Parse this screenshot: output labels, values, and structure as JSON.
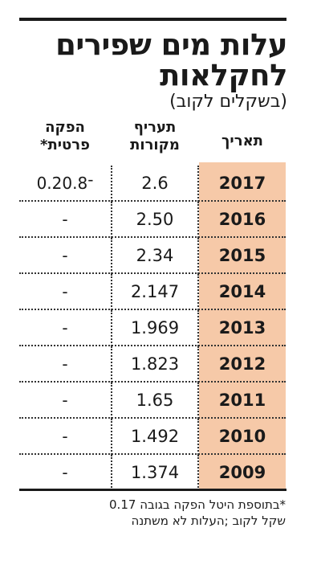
{
  "title": {
    "line1": "עלות מים שפירים",
    "line2": "לחקלאות",
    "subtitle": "(בשקלים לקוב)"
  },
  "table": {
    "headers": {
      "date": "תאריך",
      "rate_line1": "תעריף",
      "rate_line2": "מקורות",
      "private_line1": "הפקה",
      "private_line2": "פרטית*"
    },
    "rows": [
      {
        "year": "2017",
        "rate": "2.6",
        "private": "0.2־0.8"
      },
      {
        "year": "2016",
        "rate": "2.50",
        "private": "-"
      },
      {
        "year": "2015",
        "rate": "2.34",
        "private": "-"
      },
      {
        "year": "2014",
        "rate": "2.147",
        "private": "-"
      },
      {
        "year": "2013",
        "rate": "1.969",
        "private": "-"
      },
      {
        "year": "2012",
        "rate": "1.823",
        "private": "-"
      },
      {
        "year": "2011",
        "rate": "1.65",
        "private": "-"
      },
      {
        "year": "2010",
        "rate": "1.492",
        "private": "-"
      },
      {
        "year": "2009",
        "rate": "1.374",
        "private": "-"
      }
    ]
  },
  "footnote": {
    "line1": "*בתוספת היטל הפקה בגובה 0.17",
    "line2": "שקל לקוב ;העלות לא משתנה"
  },
  "colors": {
    "date_column_bg": "#f6c9a8",
    "text": "#1a1a1a"
  }
}
